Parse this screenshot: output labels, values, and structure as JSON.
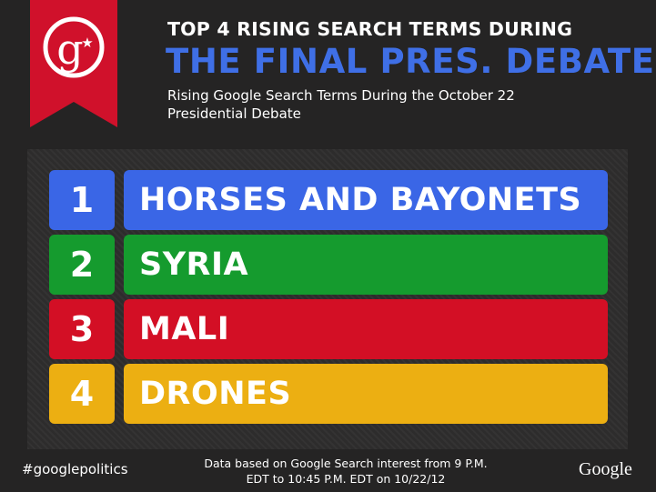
{
  "header": {
    "title_line1": "TOP 4 RISING SEARCH TERMS DURING",
    "title_line2": "THE FINAL PRES. DEBATE",
    "subtitle": "Rising Google Search Terms During the October 22 Presidential Debate",
    "badge_icon": "google-politics-g-star-icon"
  },
  "rankings": [
    {
      "rank": "1",
      "term": "HORSES AND BAYONETS",
      "color": "#3a66e6"
    },
    {
      "rank": "2",
      "term": "SYRIA",
      "color": "#159b2e"
    },
    {
      "rank": "3",
      "term": "MALI",
      "color": "#d30f25"
    },
    {
      "rank": "4",
      "term": "DRONES",
      "color": "#ecaf12"
    }
  ],
  "footer": {
    "hashtag": "#googlepolitics",
    "note": "Data based on Google Search interest from 9 P.M. EDT to 10:45 P.M. EDT on 10/22/12",
    "logo": "Google"
  },
  "colors": {
    "background": "#252424",
    "banner_red": "#d0112b",
    "title_blue": "#3f6fe6"
  }
}
